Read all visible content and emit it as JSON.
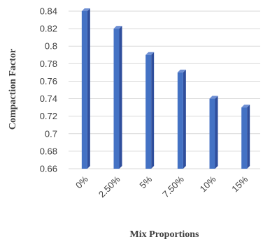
{
  "chart_data": {
    "type": "bar",
    "categories": [
      "0%",
      "2.50%",
      "5%",
      "7.50%",
      "10%",
      "15%"
    ],
    "values": [
      0.84,
      0.82,
      0.79,
      0.77,
      0.74,
      0.73
    ],
    "xlabel": "Mix Proportions",
    "ylabel": "Compaction Factor",
    "ylim": [
      0.66,
      0.84
    ],
    "yticks": [
      "0.66",
      "0.68",
      "0.7",
      "0.72",
      "0.74",
      "0.76",
      "0.78",
      "0.8",
      "0.82",
      "0.84"
    ],
    "grid": true,
    "legend": "none",
    "colors": {
      "bar_front": "#4472c4",
      "bar_side": "#2f4e9c",
      "bar_top": "#6f90d4"
    }
  }
}
